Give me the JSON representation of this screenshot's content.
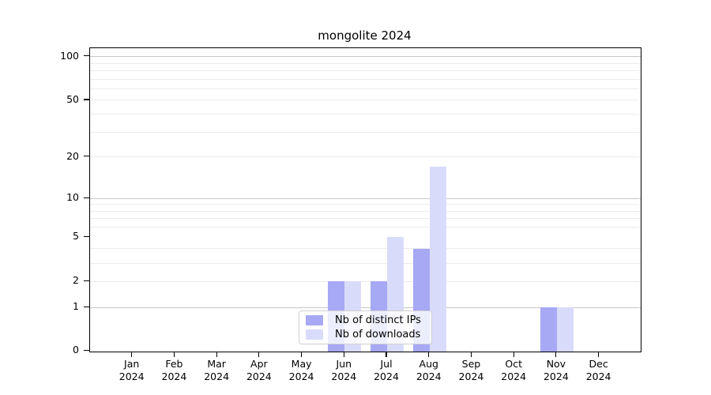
{
  "title": "mongolite 2024",
  "chart_data": {
    "type": "bar",
    "title": "mongolite 2024",
    "x_months": [
      "Jan",
      "Feb",
      "Mar",
      "Apr",
      "May",
      "Jun",
      "Jul",
      "Aug",
      "Sep",
      "Oct",
      "Nov",
      "Dec"
    ],
    "x_year": "2024",
    "categories": [
      "Jan 2024",
      "Feb 2024",
      "Mar 2024",
      "Apr 2024",
      "May 2024",
      "Jun 2024",
      "Jul 2024",
      "Aug 2024",
      "Sep 2024",
      "Oct 2024",
      "Nov 2024",
      "Dec 2024"
    ],
    "series": [
      {
        "name": "Nb of distinct IPs",
        "color": "#a7a9f4",
        "values": [
          0,
          0,
          0,
          0,
          0,
          2,
          2,
          4,
          0,
          0,
          1,
          0
        ]
      },
      {
        "name": "Nb of downloads",
        "color": "#d9dbfa",
        "values": [
          0,
          0,
          0,
          0,
          0,
          2,
          5,
          17,
          0,
          0,
          1,
          0
        ]
      }
    ],
    "yscale": "log1p",
    "ylim": [
      0,
      114
    ],
    "yticks": [
      0,
      1,
      2,
      5,
      10,
      20,
      50,
      100
    ],
    "major_gridlines": [
      1,
      10,
      100
    ],
    "minor_gridlines": [
      2,
      3,
      4,
      6,
      7,
      8,
      9,
      20,
      30,
      40,
      50,
      60,
      70,
      80,
      90
    ],
    "grid": true,
    "legend_position": "lower center"
  },
  "legend": {
    "items": [
      "Nb of distinct IPs",
      "Nb of downloads"
    ]
  },
  "colors": {
    "distinct_ips_bar": "#a7a9f4",
    "downloads_bar": "#d9dbfa",
    "major_gridline": "#c8c8c8",
    "minor_gridline": "#ebebeb",
    "axis": "#000000",
    "background": "#ffffff",
    "legend_border": "#d0d0d0"
  }
}
